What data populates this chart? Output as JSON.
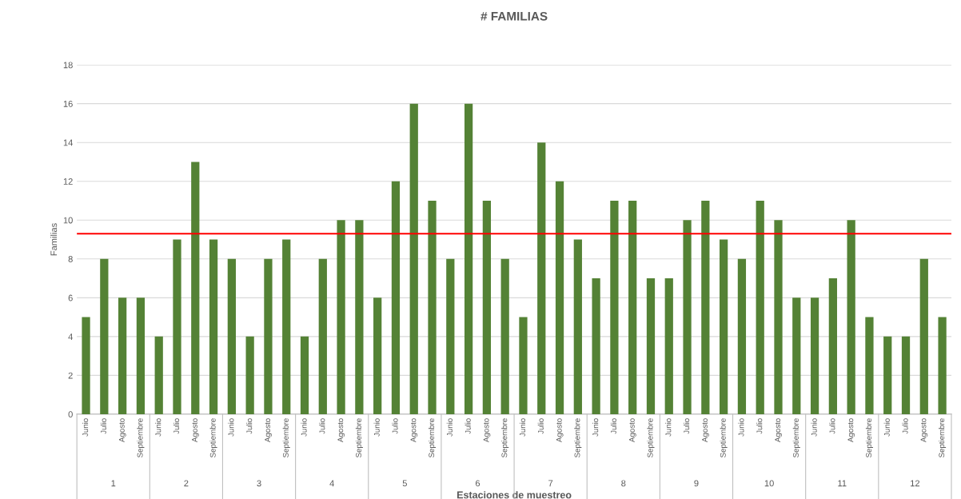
{
  "chart_data": {
    "type": "bar",
    "title": "# FAMILIAS",
    "xlabel": "Estaciones de muestreo",
    "ylabel": "Familias",
    "categories": [
      "Junio",
      "Julio",
      "Agosto",
      "Septiembre",
      "Junio",
      "Julio",
      "Agosto",
      "Septiembre",
      "Junio",
      "Julio",
      "Agosto",
      "Septiembre",
      "Junio",
      "Julio",
      "Agosto",
      "Septiembre",
      "Junio",
      "Julio",
      "Agosto",
      "Septiembre",
      "Junio",
      "Julio",
      "Agosto",
      "Septiembre",
      "Junio",
      "Julio",
      "Agosto",
      "Septiembre",
      "Junio",
      "Julio",
      "Agosto",
      "Septiembre",
      "Junio",
      "Julio",
      "Agosto",
      "Septiembre",
      "Junio",
      "Julio",
      "Agosto",
      "Septiembre",
      "Junio",
      "Julio",
      "Agosto",
      "Septiembre",
      "Junio",
      "Julio",
      "Agosto",
      "Septiembre"
    ],
    "series": [
      {
        "color": "#548235",
        "values": [
          5,
          8,
          6,
          6,
          4,
          9,
          13,
          9,
          8,
          4,
          8,
          9,
          4,
          8,
          10,
          10,
          6,
          12,
          16,
          11,
          8,
          16,
          11,
          8,
          5,
          14,
          12,
          9,
          7,
          11,
          11,
          7,
          7,
          10,
          11,
          9,
          8,
          11,
          10,
          6,
          6,
          7,
          10,
          5,
          4,
          4,
          8,
          5
        ]
      }
    ],
    "annotations": [
      "1",
      "2",
      "3",
      "4",
      "5",
      "6",
      "7",
      "8",
      "9",
      "10",
      "11",
      "12"
    ],
    "ref_lines": [
      {
        "axis": "y",
        "value": 9.3,
        "color": "#ff0000"
      }
    ],
    "ylim": [
      0,
      18
    ],
    "yticks": [
      0,
      2,
      4,
      6,
      8,
      10,
      12,
      14,
      16,
      18
    ],
    "grid": "y",
    "legend": false
  }
}
